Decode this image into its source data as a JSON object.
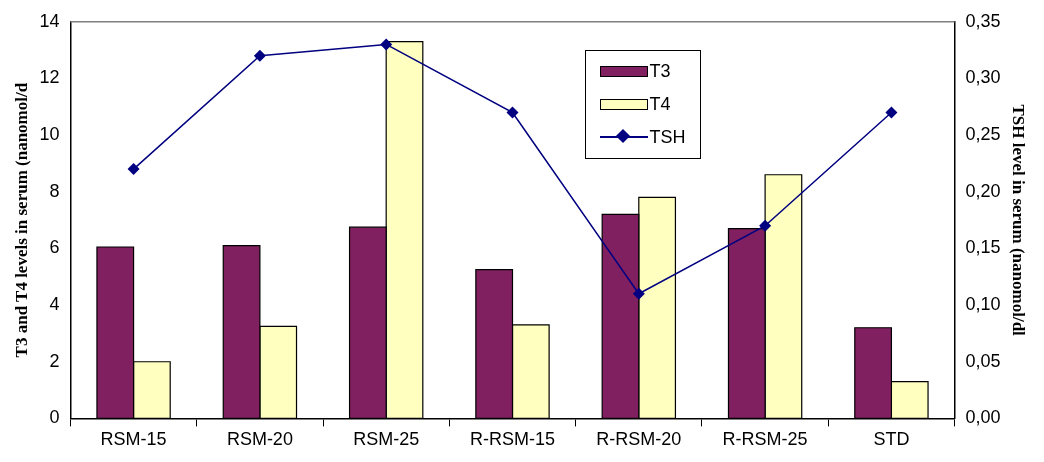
{
  "chart_data": {
    "type": "bar",
    "ylabel": "T3 and T4 levels in serum (nanomol/d",
    "y2label": "TSH level in serum (nanomol/dl",
    "categories": [
      "RSM-15",
      "RSM-20",
      "RSM-25",
      "R-RSM-15",
      "R-RSM-20",
      "R-RSM-25",
      "STD"
    ],
    "series": [
      {
        "name": "T3",
        "color": "#802060",
        "values": [
          6.05,
          6.1,
          6.75,
          5.25,
          7.2,
          6.7,
          3.2
        ]
      },
      {
        "name": "T4",
        "color": "#ffffc0",
        "values": [
          2.0,
          3.25,
          13.3,
          3.3,
          7.8,
          8.6,
          1.3
        ]
      },
      {
        "name": "TSH",
        "type": "line",
        "axis": "y2",
        "color": "#000080",
        "marker": "diamond",
        "values": [
          0.22,
          0.32,
          0.33,
          0.27,
          0.11,
          0.17,
          0.27
        ]
      }
    ],
    "ylim": [
      0,
      14
    ],
    "yticks": [
      0,
      2,
      4,
      6,
      8,
      10,
      12,
      14
    ],
    "y2lim": [
      0,
      0.35
    ],
    "y2ticks": [
      {
        "value": 0,
        "label": "0,00"
      },
      {
        "value": 0.05,
        "label": "0,05"
      },
      {
        "value": 0.1,
        "label": "0,10"
      },
      {
        "value": 0.15,
        "label": "0,15"
      },
      {
        "value": 0.2,
        "label": "0,20"
      },
      {
        "value": 0.25,
        "label": "0,25"
      },
      {
        "value": 0.3,
        "label": "0,30"
      },
      {
        "value": 0.35,
        "label": "0,35"
      }
    ],
    "grid": false,
    "legend": "top right"
  }
}
